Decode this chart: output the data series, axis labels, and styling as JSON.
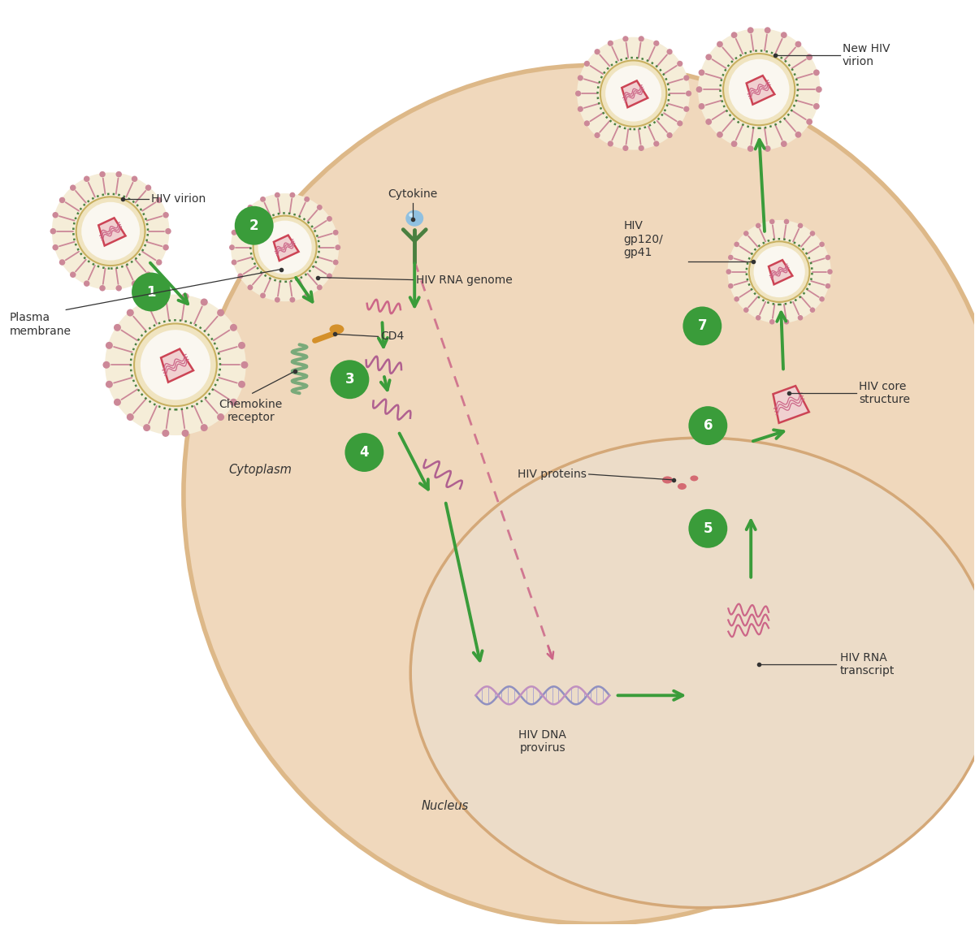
{
  "background_color": "#ffffff",
  "cell_color": "#f0d8bc",
  "cell_border_color": "#ddb888",
  "nucleus_color": "#ecdcc8",
  "nucleus_border_color": "#d4a878",
  "green_color": "#3a9c3a",
  "pink_color": "#cc6688",
  "black_color": "#333333",
  "white_color": "#ffffff",
  "virion_outer_color": "#f5edd8",
  "virion_golden_color": "#c8b060",
  "virion_green_ring_color": "#4a8040",
  "virion_spike_color": "#cc8898",
  "virion_core_border": "#cc4455",
  "virion_core_fill": "#f0d0d0",
  "rna_pink_color": "#cc6688",
  "rna_purple_color": "#b06090",
  "dna_blue_color": "#9090c0",
  "dna_purple_color": "#c090c0",
  "dna_rung_color": "#b0a8d0",
  "cytokine_blue": "#90c0e0",
  "cytokine_green": "#4a8040",
  "cd4_orange": "#d4902a",
  "chemokine_green": "#7aaa7a",
  "labels": {
    "hiv_virion": "HIV virion",
    "hiv_rna_genome": "HIV RNA genome",
    "cd4": "CD4",
    "chemokine_receptor": "Chemokine\nreceptor",
    "plasma_membrane": "Plasma\nmembrane",
    "cytoplasm": "Cytoplasm",
    "nucleus": "Nucleus",
    "cytokine": "Cytokine",
    "hiv_dna_provirus": "HIV DNA\nprovirus",
    "hiv_rna_transcript": "HIV RNA\ntranscript",
    "hiv_proteins": "HIV proteins",
    "hiv_core_structure": "HIV core\nstructure",
    "hiv_gp120_gp41": "HIV\ngp120/\ngp41",
    "new_hiv_virion": "New HIV\nvirion"
  }
}
